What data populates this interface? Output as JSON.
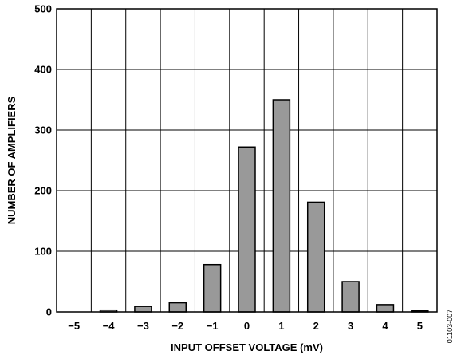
{
  "chart_data": {
    "type": "bar",
    "categories": [
      "−5",
      "−4",
      "−3",
      "−2",
      "−1",
      "0",
      "1",
      "2",
      "3",
      "4",
      "5"
    ],
    "x": [
      -5,
      -4,
      -3,
      -2,
      -1,
      0,
      1,
      2,
      3,
      4,
      5
    ],
    "values": [
      0,
      3,
      9,
      15,
      78,
      272,
      350,
      181,
      50,
      12,
      2
    ],
    "xlabel": "INPUT OFFSET VOLTAGE (mV)",
    "ylabel": "NUMBER OF AMPLIFIERS",
    "ylim": [
      0,
      500
    ],
    "yticks": [
      0,
      100,
      200,
      300,
      400,
      500
    ],
    "ytick_labels": [
      "0",
      "100",
      "200",
      "300",
      "400",
      "500"
    ],
    "grid": true,
    "bar_color": "#999999",
    "figure_id": "01103-007"
  }
}
